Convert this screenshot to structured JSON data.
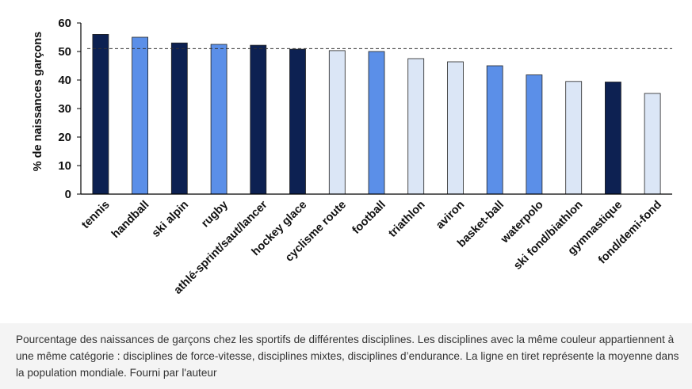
{
  "chart_data": {
    "type": "bar",
    "ylabel": "% de naissances garçons",
    "ylim": [
      0,
      60
    ],
    "yticks": [
      0,
      10,
      20,
      30,
      40,
      50,
      60
    ],
    "grid": false,
    "reference_line": {
      "value": 51,
      "style": "dashed"
    },
    "categories": [
      "tennis",
      "handball",
      "ski alpin",
      "rugby",
      "athlé-sprint/saut/lancer",
      "hockey glace",
      "cyclisme route",
      "football",
      "triathlon",
      "aviron",
      "basket-ball",
      "waterpolo",
      "ski fond/biathlon",
      "gymnastique",
      "fond/demi-fond"
    ],
    "values": [
      56,
      55,
      53,
      52.5,
      52.2,
      50.8,
      50.3,
      50,
      47.5,
      46.4,
      45,
      41.8,
      39.5,
      39.3,
      35.3
    ],
    "bar_colors": [
      "#0d2152",
      "#5b8fe8",
      "#0d2152",
      "#5b8fe8",
      "#0d2152",
      "#0d2152",
      "#dbe6f6",
      "#5b8fe8",
      "#dbe6f6",
      "#dbe6f6",
      "#5b8fe8",
      "#5b8fe8",
      "#dbe6f6",
      "#0d2152",
      "#dbe6f6"
    ]
  },
  "caption": "Pourcentage des naissances de garçons chez les sportifs de différentes disciplines. Les disciplines avec la même couleur appartiennent à une même catégorie : disciplines de force-vitesse, disciplines mixtes, disciplines d’endurance. La ligne en tiret représente la moyenne dans la population mondiale. Fourni par l'auteur"
}
